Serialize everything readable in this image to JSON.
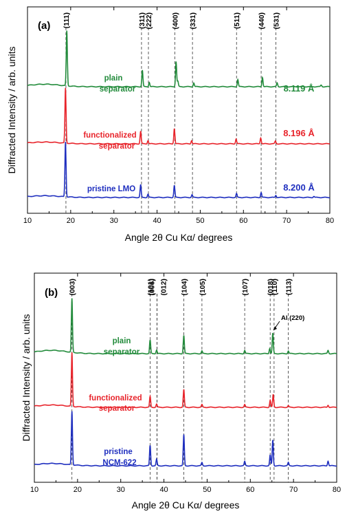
{
  "chart_data": [
    {
      "type": "line",
      "panel_label": "(a)",
      "xlabel": "Angle 2θ Cu Kα/ degrees",
      "ylabel": "Diffracted Intensity / arb. units",
      "xlim": [
        10,
        80
      ],
      "xticks": [
        "10",
        "20",
        "30",
        "40",
        "50",
        "60",
        "70",
        "80"
      ],
      "reflections": [
        {
          "hkl": "(111)",
          "x": 18.9
        },
        {
          "hkl": "(311)",
          "x": 36.4
        },
        {
          "hkl": "(222)",
          "x": 38.0
        },
        {
          "hkl": "(400)",
          "x": 44.1
        },
        {
          "hkl": "(331)",
          "x": 48.2
        },
        {
          "hkl": "(511)",
          "x": 58.4
        },
        {
          "hkl": "(440)",
          "x": 64.1
        },
        {
          "hkl": "(531)",
          "x": 67.5
        }
      ],
      "series": [
        {
          "name": "plain separator",
          "label_lines": [
            "plain",
            "separator"
          ],
          "lattice": "8.119 Å",
          "color": "#228b3b",
          "peaks": [
            [
              19.1,
              1.0
            ],
            [
              36.6,
              0.3
            ],
            [
              38.2,
              0.08
            ],
            [
              44.4,
              0.46
            ],
            [
              44.8,
              0.1
            ],
            [
              48.5,
              0.07
            ],
            [
              58.7,
              0.13
            ],
            [
              64.4,
              0.17
            ],
            [
              67.8,
              0.07
            ],
            [
              78.0,
              0.03
            ]
          ]
        },
        {
          "name": "functionalized separator",
          "label_lines": [
            "functionalized",
            "separator"
          ],
          "lattice": "8.196 Å",
          "color": "#e8242b",
          "peaks": [
            [
              18.8,
              1.0
            ],
            [
              36.2,
              0.23
            ],
            [
              37.9,
              0.06
            ],
            [
              44.0,
              0.28
            ],
            [
              48.0,
              0.06
            ],
            [
              58.3,
              0.09
            ],
            [
              64.0,
              0.11
            ],
            [
              67.4,
              0.05
            ]
          ]
        },
        {
          "name": "pristine LMO",
          "label_lines": [
            "pristine LMO"
          ],
          "lattice": "8.200 Å",
          "color": "#1f2fbf",
          "peaks": [
            [
              18.8,
              1.0
            ],
            [
              36.2,
              0.23
            ],
            [
              37.9,
              0.06
            ],
            [
              44.0,
              0.22
            ],
            [
              48.1,
              0.05
            ],
            [
              58.4,
              0.07
            ],
            [
              64.1,
              0.09
            ],
            [
              67.5,
              0.04
            ],
            [
              76.3,
              0.02
            ]
          ]
        }
      ]
    },
    {
      "type": "line",
      "panel_label": "(b)",
      "xlabel": "Angle 2θ Cu Kα/ degrees",
      "ylabel": "Diffracted Intensity / arb. units",
      "xlim": [
        10,
        80
      ],
      "xticks": [
        "10",
        "20",
        "30",
        "40",
        "50",
        "60",
        "70",
        "80"
      ],
      "annotation": "Al (220)",
      "reflections": [
        {
          "hkl": "(003)",
          "x": 18.7
        },
        {
          "hkl": "(101)",
          "x": 36.8
        },
        {
          "hkl": "(006)",
          "x": 38.4
        },
        {
          "hkl": "(012)",
          "x": 38.4
        },
        {
          "hkl": "(104)",
          "x": 44.6
        },
        {
          "hkl": "(105)",
          "x": 48.8
        },
        {
          "hkl": "(107)",
          "x": 58.7
        },
        {
          "hkl": "(018)",
          "x": 64.6
        },
        {
          "hkl": "(110)",
          "x": 65.5
        },
        {
          "hkl": "(113)",
          "x": 68.8
        }
      ],
      "series": [
        {
          "name": "plain separator",
          "label_lines": [
            "plain",
            "separator"
          ],
          "color": "#228b3b",
          "peaks": [
            [
              18.7,
              1.0
            ],
            [
              36.8,
              0.25
            ],
            [
              38.3,
              0.07
            ],
            [
              44.6,
              0.34
            ],
            [
              48.8,
              0.05
            ],
            [
              58.7,
              0.06
            ],
            [
              64.5,
              0.1
            ],
            [
              65.2,
              0.38
            ],
            [
              68.8,
              0.05
            ],
            [
              78.0,
              0.06
            ]
          ]
        },
        {
          "name": "functionalized separator",
          "label_lines": [
            "functionalized",
            "separator"
          ],
          "color": "#e8242b",
          "peaks": [
            [
              18.7,
              1.0
            ],
            [
              36.8,
              0.2
            ],
            [
              38.3,
              0.06
            ],
            [
              44.6,
              0.33
            ],
            [
              48.8,
              0.05
            ],
            [
              58.7,
              0.05
            ],
            [
              64.6,
              0.13
            ],
            [
              65.3,
              0.24
            ],
            [
              68.8,
              0.03
            ],
            [
              78.0,
              0.04
            ]
          ]
        },
        {
          "name": "pristine NCM-622",
          "label_lines": [
            "pristine",
            "NCM-622"
          ],
          "color": "#1f2fbf",
          "peaks": [
            [
              18.7,
              1.0
            ],
            [
              36.8,
              0.38
            ],
            [
              38.3,
              0.12
            ],
            [
              44.6,
              0.58
            ],
            [
              48.8,
              0.06
            ],
            [
              58.7,
              0.08
            ],
            [
              64.6,
              0.2
            ],
            [
              65.2,
              0.48
            ],
            [
              68.8,
              0.06
            ],
            [
              78.0,
              0.09
            ]
          ]
        }
      ]
    }
  ]
}
